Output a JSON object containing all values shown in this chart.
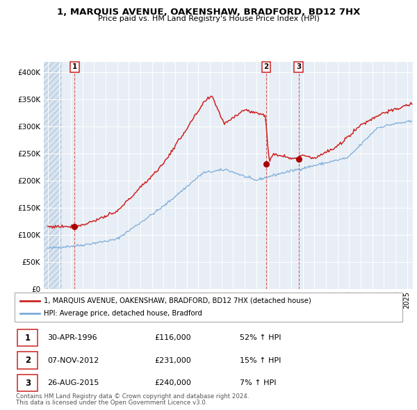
{
  "title": "1, MARQUIS AVENUE, OAKENSHAW, BRADFORD, BD12 7HX",
  "subtitle": "Price paid vs. HM Land Registry's House Price Index (HPI)",
  "legend_line1": "1, MARQUIS AVENUE, OAKENSHAW, BRADFORD, BD12 7HX (detached house)",
  "legend_line2": "HPI: Average price, detached house, Bradford",
  "footer1": "Contains HM Land Registry data © Crown copyright and database right 2024.",
  "footer2": "This data is licensed under the Open Government Licence v3.0.",
  "sale_dates_label": [
    "30-APR-1996",
    "07-NOV-2012",
    "26-AUG-2015"
  ],
  "sale_prices_label": [
    "£116,000",
    "£231,000",
    "£240,000"
  ],
  "sale_hpi_label": [
    "52% ↑ HPI",
    "15% ↑ HPI",
    "7% ↑ HPI"
  ],
  "hpi_color": "#7aabda",
  "house_color": "#cc2222",
  "dot_color": "#aa0000",
  "vline_color": "#cc4444",
  "bg_chart": "#e8eef5",
  "bg_hatch_face": "#d8e4f0",
  "ylim": [
    0,
    420000
  ],
  "yticks": [
    0,
    50000,
    100000,
    150000,
    200000,
    250000,
    300000,
    350000,
    400000
  ],
  "ytick_labels": [
    "£0",
    "£50K",
    "£100K",
    "£150K",
    "£200K",
    "£250K",
    "£300K",
    "£350K",
    "£400K"
  ]
}
